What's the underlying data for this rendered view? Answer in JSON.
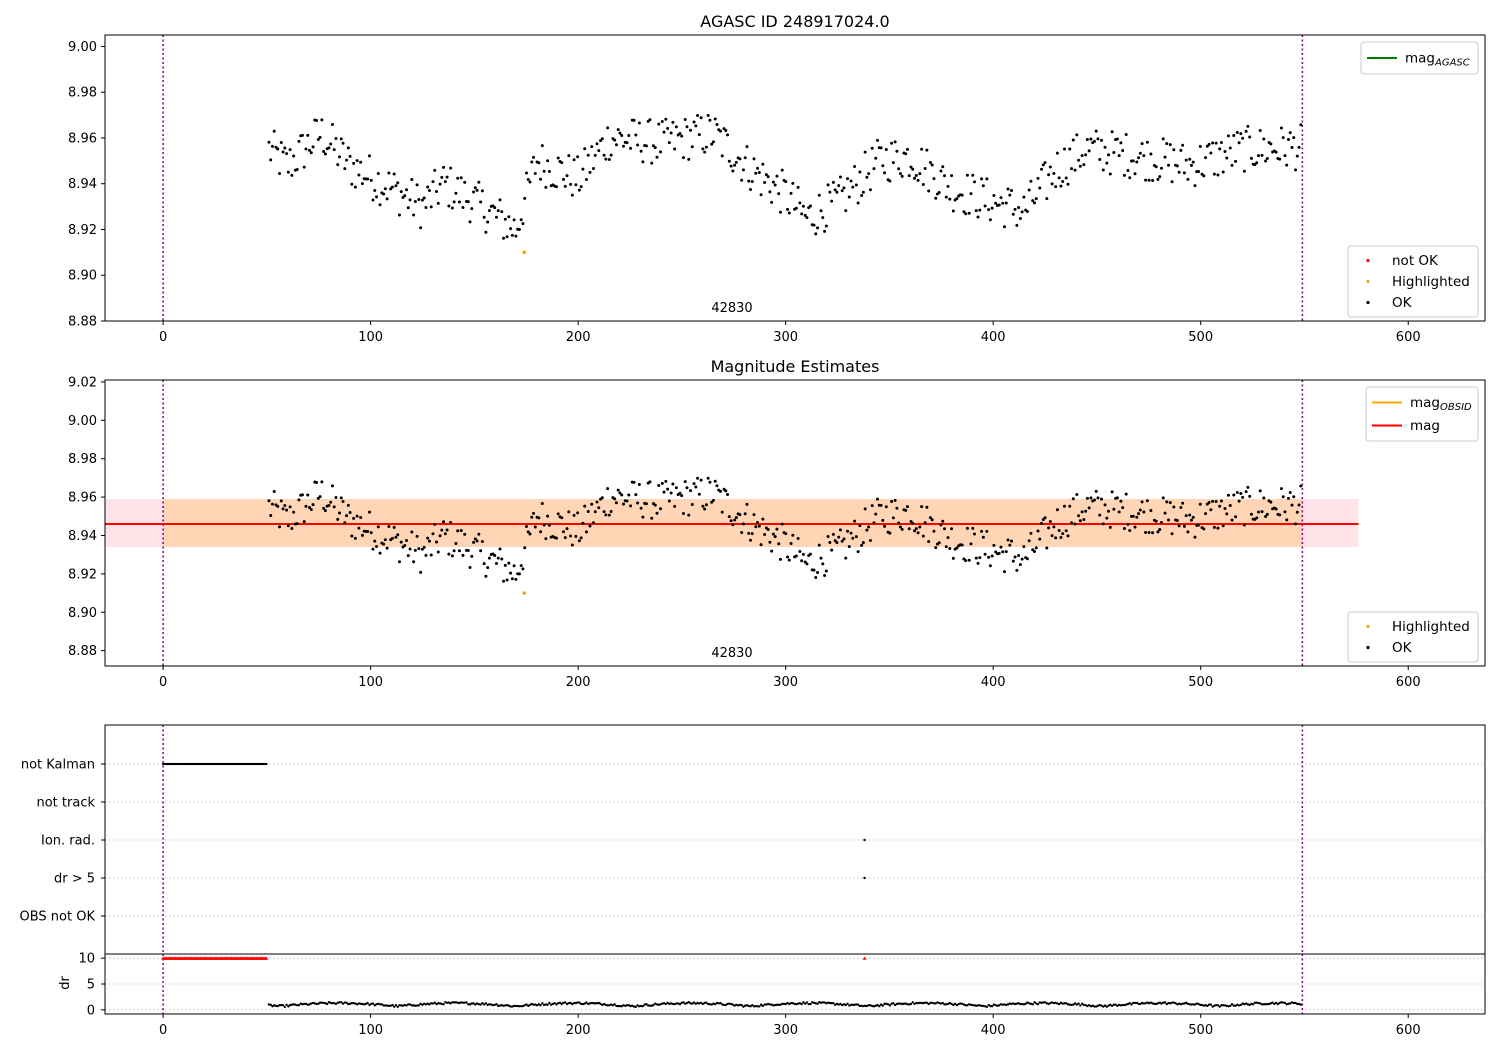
{
  "chart_data": [
    {
      "type": "scatter",
      "title": "AGASC ID 248917024.0",
      "xlim": [
        -28,
        637
      ],
      "ylim": [
        8.88,
        9.005
      ],
      "x_ticks": [
        0,
        100,
        200,
        300,
        400,
        500,
        600
      ],
      "y_ticks": [
        8.88,
        8.9,
        8.92,
        8.94,
        8.96,
        8.98,
        9.0
      ],
      "y_tick_labels": [
        "8.88",
        "8.90",
        "8.92",
        "8.94",
        "8.96",
        "8.98",
        "9.00"
      ],
      "vlines": [
        0,
        549
      ],
      "obsid_label": "42830",
      "obsid_label_x": 274,
      "highlighted_point": {
        "x": 174,
        "y": 8.91
      },
      "series_x_range": [
        51,
        549
      ],
      "legends": [
        {
          "position": "top-right",
          "entries": [
            {
              "kind": "line",
              "color": "#008000",
              "label": "mag",
              "sub": "AGASC"
            }
          ]
        },
        {
          "position": "bottom-right",
          "entries": [
            {
              "kind": "dot",
              "color": "#ff0000",
              "label": "not OK"
            },
            {
              "kind": "dot",
              "color": "#ffa500",
              "label": "Highlighted"
            },
            {
              "kind": "dot",
              "color": "#000000",
              "label": "OK"
            }
          ]
        }
      ]
    },
    {
      "type": "scatter",
      "title": "Magnitude Estimates",
      "xlim": [
        -28,
        637
      ],
      "ylim": [
        8.872,
        9.021
      ],
      "x_ticks": [
        0,
        100,
        200,
        300,
        400,
        500,
        600
      ],
      "y_ticks": [
        8.88,
        8.9,
        8.92,
        8.94,
        8.96,
        8.98,
        9.0,
        9.02
      ],
      "y_tick_labels": [
        "8.88",
        "8.90",
        "8.92",
        "8.94",
        "8.96",
        "8.98",
        "9.00",
        "9.02"
      ],
      "vlines": [
        0,
        549
      ],
      "obsid_label": "42830",
      "obsid_label_x": 274,
      "mean_mag": 8.946,
      "band": [
        8.934,
        8.959
      ],
      "band_x_range": [
        -28,
        576
      ],
      "highlighted_point": {
        "x": 174,
        "y": 8.91
      },
      "series_x_range": [
        51,
        549
      ],
      "legends": [
        {
          "position": "top-right",
          "entries": [
            {
              "kind": "line",
              "color": "#ffa500",
              "label": "mag",
              "sub": "OBSID"
            },
            {
              "kind": "line",
              "color": "#ff0000",
              "label": "mag",
              "sub": ""
            }
          ]
        },
        {
          "position": "bottom-right",
          "entries": [
            {
              "kind": "dot",
              "color": "#ffa500",
              "label": "Highlighted"
            },
            {
              "kind": "dot",
              "color": "#000000",
              "label": "OK"
            }
          ]
        }
      ]
    },
    {
      "type": "scatter",
      "title": "",
      "xlim": [
        -28,
        637
      ],
      "categories": [
        "not Kalman",
        "not track",
        "Ion. rad.",
        "dr > 5",
        "OBS not OK"
      ],
      "vlines": [
        0,
        549
      ],
      "flags": [
        {
          "category": "not Kalman",
          "x_range": [
            0,
            50
          ]
        },
        {
          "category": "Ion. rad.",
          "x": 338
        },
        {
          "category": "dr > 5",
          "x": 338
        }
      ]
    },
    {
      "type": "scatter",
      "title": "",
      "ylabel": "dr",
      "xlim": [
        -28,
        637
      ],
      "ylim": [
        -0.8,
        10.8
      ],
      "x_ticks": [
        0,
        100,
        200,
        300,
        400,
        500,
        600
      ],
      "y_ticks": [
        0,
        5,
        10
      ],
      "y_tick_labels": [
        "0",
        "5",
        "10"
      ],
      "vlines": [
        0,
        549
      ],
      "clipped_points": {
        "x_range": [
          0,
          50
        ],
        "value": 10,
        "color": "#ff0000"
      },
      "clipped_point_extra": {
        "x": 338,
        "value": 10
      },
      "series_x_range": [
        51,
        549
      ]
    }
  ]
}
